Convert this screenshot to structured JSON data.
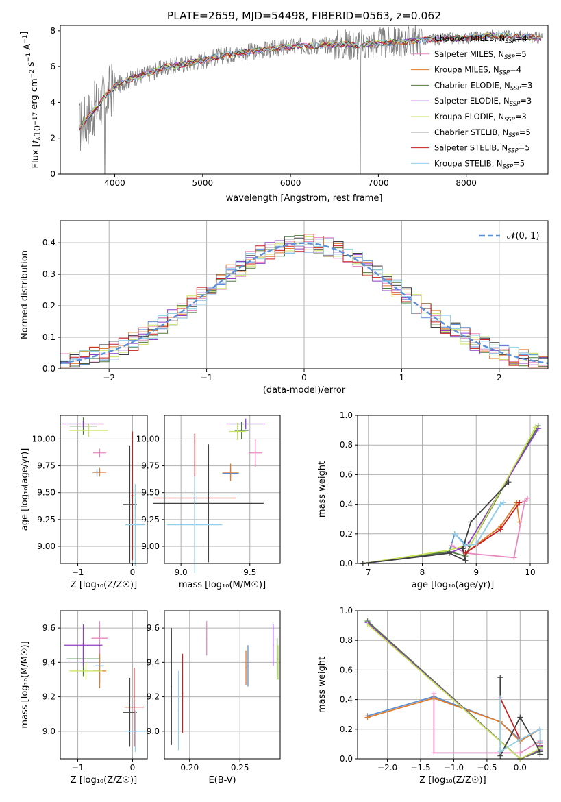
{
  "figure_title": "PLATE=2659, MJD=54498, FIBERID=0563, z=0.062",
  "colors": {
    "data": "#808080",
    "grid": "#b0b0b0",
    "model": [
      "#5b8fd6",
      "#e88ac0",
      "#e07b2a",
      "#4f7a3a",
      "#8c3fc7",
      "#c9e35a",
      "#404040",
      "#c81e1e",
      "#8fd0e8"
    ]
  },
  "legend_labels": {
    "names": [
      "Chabrier MILES, N",
      "Salpeter MILES, N",
      "Kroupa MILES, N",
      "Chabrier ELODIE, N",
      "Salpeter ELODIE, N",
      "Kroupa ELODIE, N",
      "Chabrier STELIB, N",
      "Salpeter STELIB, N",
      "Kroupa STELIB, N"
    ],
    "sub": "SSP",
    "n": [
      "4",
      "5",
      "4",
      "3",
      "3",
      "3",
      "5",
      "5",
      "5"
    ],
    "gauss": "𝒩(0, 1)"
  },
  "chart_data": [
    {
      "id": "spectrum",
      "type": "line",
      "title": "PLATE=2659, MJD=54498, FIBERID=0563, z=0.062",
      "xlabel": "wavelength [Angstrom, rest frame]",
      "ylabel_parts": [
        "Flux [",
        "f",
        "λ",
        "10",
        "−17",
        " erg cm",
        "−2",
        " s",
        "−1",
        " A",
        "−1",
        "]"
      ],
      "xlim": [
        3380,
        8930
      ],
      "ylim": [
        0,
        8.3
      ],
      "xticks": [
        4000,
        5000,
        6000,
        7000,
        8000
      ],
      "yticks": [
        0,
        2,
        4,
        6,
        8
      ],
      "grid": false,
      "legend_placement": "upper right",
      "continuum_x": [
        3600,
        3700,
        3800,
        3900,
        4000,
        4200,
        4400,
        4600,
        4800,
        5000,
        5200,
        5400,
        5600,
        5800,
        6000,
        6200,
        6400,
        6600,
        6800,
        7000,
        7200,
        7400,
        7600,
        7800,
        8000,
        8200,
        8400,
        8600,
        8800
      ],
      "continuum_y": [
        2.6,
        3.2,
        3.8,
        4.4,
        4.9,
        5.35,
        5.65,
        6.0,
        6.15,
        6.35,
        6.6,
        6.75,
        6.85,
        7.0,
        7.1,
        7.15,
        7.2,
        7.25,
        7.2,
        7.3,
        7.35,
        7.45,
        7.5,
        7.55,
        7.6,
        7.7,
        7.75,
        7.7,
        7.6
      ]
    },
    {
      "id": "residuals",
      "type": "bar",
      "xlabel": "(data-model)/error",
      "ylabel": "Normed distribution",
      "xlim": [
        -2.5,
        2.5
      ],
      "ylim": [
        0,
        0.47
      ],
      "xticks": [
        -2,
        -1,
        0,
        1,
        2
      ],
      "xtick_labels": [
        "−2",
        "−1",
        "0",
        "1",
        "2"
      ],
      "yticks": [
        0,
        0.1,
        0.2,
        0.3,
        0.4
      ],
      "ytick_labels": [
        "0.0",
        "0.1",
        "0.2",
        "0.3",
        "0.4"
      ],
      "grid": true,
      "legend_placement": "upper right",
      "series": [
        {
          "name": "𝒩(0, 1)",
          "kind": "gaussian",
          "mean": 0,
          "sigma": 1
        }
      ]
    },
    {
      "id": "age_vs_Z",
      "type": "scatter",
      "xlabel": "Z [log₁₀(Z/Z☉)]",
      "ylabel": "age  [log₁₀(age/yr)]",
      "xlim": [
        -1.32,
        0.27
      ],
      "ylim": [
        8.84,
        10.22
      ],
      "xticks": [
        -1,
        0
      ],
      "xtick_labels": [
        "−1",
        "0"
      ],
      "yticks": [
        9.0,
        9.25,
        9.5,
        9.75,
        10.0
      ],
      "ytick_labels": [
        "9.00",
        "9.25",
        "9.50",
        "9.75",
        "10.00"
      ],
      "grid": true,
      "points": [
        {
          "s": 0,
          "x": -0.65,
          "y": 9.69,
          "xe": 0.08,
          "ye": 0.03
        },
        {
          "s": 1,
          "x": -0.6,
          "y": 9.87,
          "xe": 0.12,
          "ye": 0.04
        },
        {
          "s": 2,
          "x": -0.6,
          "y": 9.69,
          "xe": 0.12,
          "ye": 0.04
        },
        {
          "s": 3,
          "x": -0.9,
          "y": 10.12,
          "xe": 0.25,
          "ye": 0.08
        },
        {
          "s": 4,
          "x": -0.9,
          "y": 10.14,
          "xe": 0.38,
          "ye": 0.03
        },
        {
          "s": 5,
          "x": -0.8,
          "y": 10.08,
          "xe": 0.35,
          "ye": 0.06
        },
        {
          "s": 6,
          "x": -0.05,
          "y": 9.39,
          "xe": 0.13,
          "ye": 0.55
        },
        {
          "s": 7,
          "x": 0.0,
          "y": 9.47,
          "xe": 0.03,
          "ye": 0.6
        },
        {
          "s": 8,
          "x": 0.05,
          "y": 9.2,
          "xe": 0.18,
          "ye": 0.38
        }
      ]
    },
    {
      "id": "age_vs_mass",
      "type": "scatter",
      "xlabel": "mass [log₁₀(M/M☉)]",
      "ylabel": "",
      "xlim": [
        8.88,
        9.72
      ],
      "ylim": [
        8.84,
        10.22
      ],
      "xticks": [
        9.0,
        9.5
      ],
      "xtick_labels": [
        "9.0",
        "9.5"
      ],
      "yticks": [
        9.0,
        9.25,
        9.5,
        9.75,
        10.0
      ],
      "ytick_labels": [
        "9.00",
        "9.25",
        "9.50",
        "9.75",
        "10.00"
      ],
      "grid": true,
      "points": [
        {
          "s": 0,
          "x": 9.36,
          "y": 9.68,
          "xe": 0.06,
          "ye": 0.05
        },
        {
          "s": 1,
          "x": 9.54,
          "y": 9.87,
          "xe": 0.05,
          "ye": 0.13
        },
        {
          "s": 2,
          "x": 9.36,
          "y": 9.69,
          "xe": 0.06,
          "ye": 0.08
        },
        {
          "s": 3,
          "x": 9.44,
          "y": 10.08,
          "xe": 0.05,
          "ye": 0.08
        },
        {
          "s": 4,
          "x": 9.47,
          "y": 10.14,
          "xe": 0.14,
          "ye": 0.05
        },
        {
          "s": 5,
          "x": 9.41,
          "y": 10.07,
          "xe": 0.06,
          "ye": 0.08
        },
        {
          "s": 6,
          "x": 9.2,
          "y": 9.4,
          "xe": 0.4,
          "ye": 0.55
        },
        {
          "s": 7,
          "x": 9.1,
          "y": 9.45,
          "xe": 0.3,
          "ye": 0.6
        },
        {
          "s": 8,
          "x": 9.1,
          "y": 9.2,
          "xe": 0.2,
          "ye": 0.45
        }
      ]
    },
    {
      "id": "weight_vs_age",
      "type": "line",
      "xlabel": "age  [log₁₀(age/yr)]",
      "ylabel": "mass weight",
      "xlim": [
        6.8,
        10.33
      ],
      "ylim": [
        0,
        1.0
      ],
      "xticks": [
        7,
        8,
        9,
        10
      ],
      "yticks": [
        0,
        0.2,
        0.4,
        0.6,
        0.8,
        1.0
      ],
      "ytick_labels": [
        "0.0",
        "0.2",
        "0.4",
        "0.6",
        "0.8",
        "1.0"
      ],
      "grid": true,
      "series": [
        {
          "s": 0,
          "x": [
            6.9,
            8.5,
            8.6,
            8.8,
            9.0,
            9.45,
            9.5
          ],
          "y": [
            0.0,
            0.08,
            0.2,
            0.13,
            0.13,
            0.4,
            0.41
          ]
        },
        {
          "s": 1,
          "x": [
            8.55,
            8.8,
            9.7,
            9.9,
            9.95
          ],
          "y": [
            0.12,
            0.07,
            0.04,
            0.42,
            0.44
          ]
        },
        {
          "s": 2,
          "x": [
            8.8,
            9.45,
            9.75,
            9.8
          ],
          "y": [
            0.07,
            0.25,
            0.41,
            0.28
          ]
        },
        {
          "s": 3,
          "x": [
            6.9,
            8.5,
            8.8,
            8.9,
            10.15
          ],
          "y": [
            0.0,
            0.08,
            0.05,
            0.13,
            0.93
          ]
        },
        {
          "s": 4,
          "x": [
            6.9,
            8.5,
            8.7,
            8.85,
            10.15
          ],
          "y": [
            0.0,
            0.07,
            0.1,
            0.13,
            0.91
          ]
        },
        {
          "s": 5,
          "x": [
            6.9,
            8.5,
            8.9,
            10.1
          ],
          "y": [
            0.0,
            0.09,
            0.13,
            0.92
          ]
        },
        {
          "s": 6,
          "x": [
            6.9,
            8.5,
            8.8,
            8.75,
            8.9,
            9.6
          ],
          "y": [
            0.0,
            0.07,
            0.02,
            0.1,
            0.28,
            0.55
          ]
        },
        {
          "s": 7,
          "x": [
            8.8,
            9.45,
            9.8
          ],
          "y": [
            0.07,
            0.23,
            0.41
          ]
        },
        {
          "s": 8,
          "x": [
            8.6,
            8.8,
            9.0,
            9.45,
            9.5
          ],
          "y": [
            0.2,
            0.12,
            0.13,
            0.4,
            0.41
          ]
        }
      ]
    },
    {
      "id": "mass_vs_Z",
      "type": "scatter",
      "xlabel": "Z [log₁₀(Z/Z☉)]",
      "ylabel": "mass [log₁₀(M/M☉)]",
      "xlim": [
        -1.32,
        0.27
      ],
      "ylim": [
        8.84,
        9.7
      ],
      "xticks": [
        -1,
        0
      ],
      "xtick_labels": [
        "−1",
        "0"
      ],
      "yticks": [
        9.0,
        9.2,
        9.4,
        9.6
      ],
      "ytick_labels": [
        "9.0",
        "9.2",
        "9.4",
        "9.6"
      ],
      "grid": true,
      "points": [
        {
          "s": 0,
          "x": -0.6,
          "y": 9.38,
          "xe": 0.08,
          "ye": 0.1
        },
        {
          "s": 1,
          "x": -0.6,
          "y": 9.54,
          "xe": 0.15,
          "ye": 0.1
        },
        {
          "s": 2,
          "x": -0.6,
          "y": 9.35,
          "xe": 0.12,
          "ye": 0.1
        },
        {
          "s": 3,
          "x": -0.9,
          "y": 9.42,
          "xe": 0.3,
          "ye": 0.1
        },
        {
          "s": 4,
          "x": -0.9,
          "y": 9.5,
          "xe": 0.35,
          "ye": 0.12
        },
        {
          "s": 5,
          "x": -0.85,
          "y": 9.35,
          "xe": 0.3,
          "ye": 0.05
        },
        {
          "s": 6,
          "x": -0.05,
          "y": 9.11,
          "xe": 0.13,
          "ye": 0.2
        },
        {
          "s": 7,
          "x": 0.03,
          "y": 9.14,
          "xe": 0.18,
          "ye": 0.23
        },
        {
          "s": 8,
          "x": 0.05,
          "y": 9.0,
          "xe": 0.18,
          "ye": 0.12
        }
      ]
    },
    {
      "id": "mass_vs_EBV",
      "type": "scatter",
      "xlabel": "E(B-V)",
      "ylabel": "",
      "xlim": [
        0.175,
        0.29
      ],
      "ylim": [
        8.84,
        9.7
      ],
      "xticks": [
        0.2,
        0.25
      ],
      "xtick_labels": [
        "0.20",
        "0.25"
      ],
      "yticks": [
        9.0,
        9.2,
        9.4,
        9.6
      ],
      "ytick_labels": [
        "9.0",
        "9.2",
        "9.4",
        "9.6"
      ],
      "grid": true,
      "points": [
        {
          "s": 0,
          "x": 0.258,
          "y": 9.38,
          "xe": 0.0005,
          "ye": 0.12
        },
        {
          "s": 1,
          "x": 0.217,
          "y": 9.54,
          "xe": 0.0005,
          "ye": 0.1
        },
        {
          "s": 2,
          "x": 0.256,
          "y": 9.37,
          "xe": 0.0005,
          "ye": 0.1
        },
        {
          "s": 3,
          "x": 0.287,
          "y": 9.42,
          "xe": 0.0005,
          "ye": 0.12
        },
        {
          "s": 4,
          "x": 0.283,
          "y": 9.5,
          "xe": 0.0005,
          "ye": 0.12
        },
        {
          "s": 5,
          "x": 0.288,
          "y": 9.4,
          "xe": 0.0005,
          "ye": 0.1
        },
        {
          "s": 6,
          "x": 0.182,
          "y": 9.26,
          "xe": 0.0005,
          "ye": 0.34
        },
        {
          "s": 7,
          "x": 0.193,
          "y": 9.22,
          "xe": 0.0005,
          "ye": 0.23
        },
        {
          "s": 8,
          "x": 0.189,
          "y": 9.12,
          "xe": 0.0005,
          "ye": 0.23
        }
      ]
    },
    {
      "id": "weight_vs_Z",
      "type": "line",
      "xlabel": "Z [log₁₀(Z/Z☉)]",
      "ylabel": "mass weight",
      "xlim": [
        -2.45,
        0.42
      ],
      "ylim": [
        0,
        1.0
      ],
      "xticks": [
        -2.0,
        -1.5,
        -1.0,
        -0.5,
        0.0
      ],
      "xtick_labels": [
        "−2.0",
        "−1.5",
        "−1.0",
        "−0.5",
        "0.0"
      ],
      "yticks": [
        0,
        0.2,
        0.4,
        0.6,
        0.8,
        1.0
      ],
      "ytick_labels": [
        "0.0",
        "0.2",
        "0.4",
        "0.6",
        "0.8",
        "1.0"
      ],
      "grid": true,
      "series": [
        {
          "s": 0,
          "x": [
            -2.3,
            -1.3,
            -0.3,
            0.0,
            0.3,
            0.3
          ],
          "y": [
            0.29,
            0.42,
            0.25,
            0.13,
            0.2,
            0.11
          ]
        },
        {
          "s": 1,
          "x": [
            -1.3,
            -1.3,
            -0.3,
            -0.3,
            0.0,
            0.3
          ],
          "y": [
            0.44,
            0.04,
            0.04,
            0.04,
            0.04,
            0.12
          ]
        },
        {
          "s": 2,
          "x": [
            -2.3,
            -1.3,
            -0.3,
            0.0,
            0.3,
            0.3
          ],
          "y": [
            0.28,
            0.41,
            0.25,
            0.12,
            0.2,
            0.1
          ]
        },
        {
          "s": 3,
          "x": [
            -2.3,
            0.0,
            0.3,
            0.3
          ],
          "y": [
            0.93,
            0.0,
            0.05,
            0.08
          ]
        },
        {
          "s": 4,
          "x": [
            -2.3,
            0.0,
            0.3,
            0.3
          ],
          "y": [
            0.92,
            0.0,
            0.06,
            0.09
          ]
        },
        {
          "s": 5,
          "x": [
            -2.3,
            0.0,
            0.3,
            0.3
          ],
          "y": [
            0.91,
            0.0,
            0.07,
            0.1
          ]
        },
        {
          "s": 6,
          "x": [
            -0.3,
            -0.3,
            0.0,
            0.3,
            0.3
          ],
          "y": [
            0.55,
            0.02,
            0.28,
            0.05,
            0.03
          ]
        },
        {
          "s": 7,
          "x": [
            -0.3,
            0.0,
            0.3,
            0.3
          ],
          "y": [
            0.41,
            0.13,
            0.2,
            0.1
          ]
        },
        {
          "s": 8,
          "x": [
            -0.3,
            -0.3,
            0.0,
            0.3,
            0.3
          ],
          "y": [
            0.41,
            0.05,
            0.13,
            0.2,
            0.11
          ]
        }
      ]
    }
  ]
}
